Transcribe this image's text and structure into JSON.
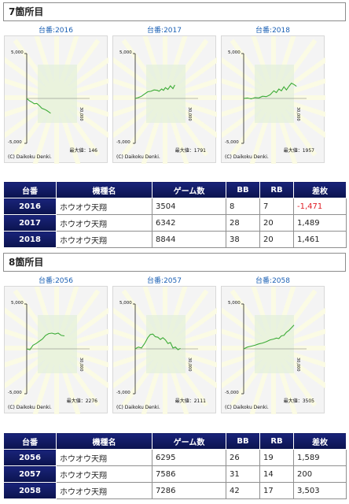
{
  "sections": [
    {
      "title": "7箇所目",
      "graphs": [
        {
          "label": "台番:2016",
          "max_text": "最大値：146",
          "points": [
            [
              0,
              0
            ],
            [
              0.04,
              -0.05
            ],
            [
              0.08,
              -0.08
            ],
            [
              0.12,
              -0.12
            ],
            [
              0.16,
              -0.11
            ],
            [
              0.2,
              -0.16
            ],
            [
              0.24,
              -0.22
            ],
            [
              0.28,
              -0.24
            ],
            [
              0.32,
              -0.27
            ],
            [
              0.35,
              -0.3
            ],
            [
              0.38,
              -0.33
            ]
          ]
        },
        {
          "label": "台番:2017",
          "max_text": "最大値：1791",
          "points": [
            [
              0,
              0
            ],
            [
              0.05,
              0.02
            ],
            [
              0.1,
              0.05
            ],
            [
              0.15,
              0.1
            ],
            [
              0.2,
              0.15
            ],
            [
              0.25,
              0.16
            ],
            [
              0.3,
              0.19
            ],
            [
              0.35,
              0.18
            ],
            [
              0.38,
              0.16
            ],
            [
              0.42,
              0.21
            ],
            [
              0.45,
              0.18
            ],
            [
              0.48,
              0.24
            ],
            [
              0.52,
              0.2
            ],
            [
              0.56,
              0.28
            ],
            [
              0.6,
              0.22
            ],
            [
              0.63,
              0.3
            ]
          ]
        },
        {
          "label": "台番:2018",
          "max_text": "最大値：1957",
          "points": [
            [
              0,
              0
            ],
            [
              0.06,
              0.01
            ],
            [
              0.12,
              -0.01
            ],
            [
              0.18,
              0.02
            ],
            [
              0.24,
              0.01
            ],
            [
              0.3,
              0.05
            ],
            [
              0.36,
              0.04
            ],
            [
              0.42,
              0.08
            ],
            [
              0.48,
              0.17
            ],
            [
              0.52,
              0.13
            ],
            [
              0.56,
              0.21
            ],
            [
              0.6,
              0.17
            ],
            [
              0.64,
              0.26
            ],
            [
              0.68,
              0.19
            ],
            [
              0.72,
              0.27
            ],
            [
              0.76,
              0.34
            ],
            [
              0.8,
              0.31
            ],
            [
              0.84,
              0.27
            ]
          ]
        }
      ],
      "table": {
        "headers": [
          "台番",
          "機種名",
          "ゲーム数",
          "BB",
          "RB",
          "差枚"
        ],
        "rows": [
          {
            "num": "2016",
            "name": "ホウオウ天翔",
            "games": "3504",
            "bb": "8",
            "rb": "7",
            "diff": "-1,471",
            "neg": true
          },
          {
            "num": "2017",
            "name": "ホウオウ天翔",
            "games": "6342",
            "bb": "28",
            "rb": "20",
            "diff": "1,489",
            "neg": false
          },
          {
            "num": "2018",
            "name": "ホウオウ天翔",
            "games": "8844",
            "bb": "38",
            "rb": "20",
            "diff": "1,461",
            "neg": false
          }
        ]
      }
    },
    {
      "title": "8箇所目",
      "graphs": [
        {
          "label": "台番:2056",
          "max_text": "最大値：2276",
          "points": [
            [
              0,
              0
            ],
            [
              0.05,
              -0.02
            ],
            [
              0.1,
              0.08
            ],
            [
              0.15,
              0.12
            ],
            [
              0.2,
              0.17
            ],
            [
              0.25,
              0.22
            ],
            [
              0.3,
              0.3
            ],
            [
              0.35,
              0.34
            ],
            [
              0.4,
              0.35
            ],
            [
              0.45,
              0.33
            ],
            [
              0.5,
              0.35
            ],
            [
              0.55,
              0.3
            ],
            [
              0.6,
              0.29
            ]
          ]
        },
        {
          "label": "台番:2057",
          "max_text": "最大値：2111",
          "points": [
            [
              0,
              0
            ],
            [
              0.05,
              0.04
            ],
            [
              0.1,
              0.02
            ],
            [
              0.15,
              0.12
            ],
            [
              0.2,
              0.25
            ],
            [
              0.24,
              0.32
            ],
            [
              0.28,
              0.33
            ],
            [
              0.32,
              0.27
            ],
            [
              0.36,
              0.26
            ],
            [
              0.4,
              0.21
            ],
            [
              0.44,
              0.25
            ],
            [
              0.48,
              0.2
            ],
            [
              0.52,
              0.12
            ],
            [
              0.56,
              0.14
            ],
            [
              0.6,
              0.02
            ],
            [
              0.64,
              0.04
            ],
            [
              0.68,
              -0.02
            ],
            [
              0.72,
              0.01
            ]
          ]
        },
        {
          "label": "台番:2058",
          "max_text": "最大値：3505",
          "points": [
            [
              0,
              0
            ],
            [
              0.06,
              0.04
            ],
            [
              0.12,
              0.06
            ],
            [
              0.18,
              0.08
            ],
            [
              0.24,
              0.11
            ],
            [
              0.3,
              0.13
            ],
            [
              0.36,
              0.16
            ],
            [
              0.42,
              0.2
            ],
            [
              0.48,
              0.22
            ],
            [
              0.52,
              0.24
            ],
            [
              0.56,
              0.23
            ],
            [
              0.6,
              0.29
            ],
            [
              0.64,
              0.3
            ],
            [
              0.68,
              0.37
            ],
            [
              0.72,
              0.41
            ],
            [
              0.76,
              0.47
            ],
            [
              0.8,
              0.53
            ]
          ]
        }
      ],
      "table": {
        "headers": [
          "台番",
          "機種名",
          "ゲーム数",
          "BB",
          "RB",
          "差枚"
        ],
        "rows": [
          {
            "num": "2056",
            "name": "ホウオウ天翔",
            "games": "6295",
            "bb": "26",
            "rb": "19",
            "diff": "1,589",
            "neg": false
          },
          {
            "num": "2057",
            "name": "ホウオウ天翔",
            "games": "7586",
            "bb": "31",
            "rb": "14",
            "diff": "200",
            "neg": false
          },
          {
            "num": "2058",
            "name": "ホウオウ天翔",
            "games": "7286",
            "bb": "42",
            "rb": "17",
            "diff": "3,503",
            "neg": false
          }
        ]
      }
    }
  ],
  "graph_common": {
    "y_top": "5,000",
    "y_bottom": "-5,000",
    "x_end": "30,000",
    "credit": "(C) Daikoku Denki.",
    "line_color": "#3cab37"
  }
}
